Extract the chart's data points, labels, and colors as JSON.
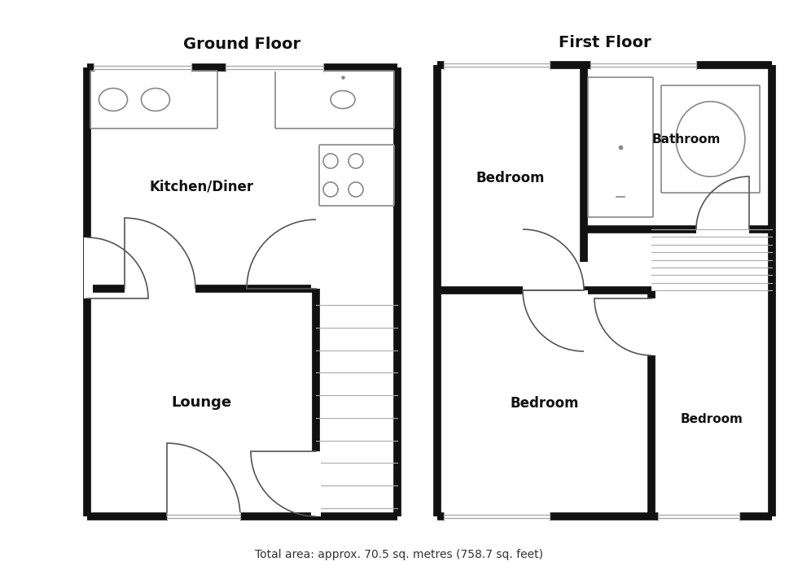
{
  "title_ground": "Ground Floor",
  "title_first": "First Floor",
  "footer": "Total area: approx. 70.5 sq. metres (758.7 sq. feet)",
  "bg_color": "#ffffff",
  "wall_color": "#111111",
  "lw": 7
}
